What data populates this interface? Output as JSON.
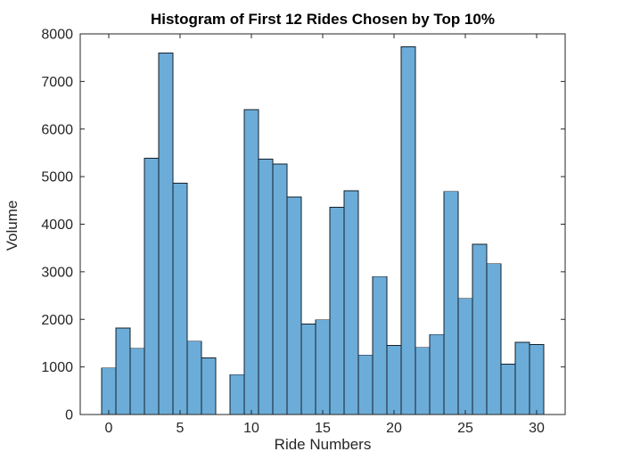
{
  "chart_data": {
    "type": "bar",
    "title": "Histogram of First 12 Rides Chosen by Top 10%",
    "xlabel": "Ride Numbers",
    "ylabel": "Volume",
    "categories": [
      0,
      1,
      2,
      3,
      4,
      5,
      6,
      7,
      8,
      9,
      10,
      11,
      12,
      13,
      14,
      15,
      16,
      17,
      18,
      19,
      20,
      21,
      22,
      23,
      24,
      25,
      26,
      27,
      28,
      29,
      30
    ],
    "values": [
      980,
      1820,
      1390,
      5390,
      7600,
      4860,
      1540,
      1190,
      0,
      840,
      6410,
      5370,
      5260,
      4570,
      1900,
      1990,
      4360,
      4700,
      1250,
      2900,
      1450,
      7730,
      1410,
      1680,
      4690,
      2440,
      3580,
      3170,
      1060,
      1520,
      1470
    ],
    "bar_width": 1,
    "xlim": [
      -2,
      32
    ],
    "ylim": [
      0,
      8000
    ],
    "x_ticks": [
      0,
      5,
      10,
      15,
      20,
      25,
      30
    ],
    "y_ticks": [
      0,
      1000,
      2000,
      3000,
      4000,
      5000,
      6000,
      7000,
      8000
    ],
    "grid": false,
    "legend": null,
    "bar_fill_color": "#6CACD8",
    "bar_edge_color": "#15212B",
    "axes_color": "#262626",
    "background_color": "#ffffff"
  }
}
